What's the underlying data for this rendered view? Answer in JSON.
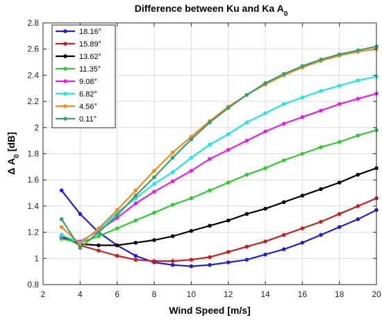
{
  "chart_data": {
    "type": "line",
    "title_main": "Difference between Ku and Ka A",
    "title_sub": "0",
    "xlabel": "Wind Speed [m/s]",
    "ylabel_main": "Δ A",
    "ylabel_sub": "0",
    "ylabel_unit": " [dB]",
    "xlim": [
      2,
      20
    ],
    "ylim": [
      0.8,
      2.8
    ],
    "xticks": [
      "2",
      "4",
      "6",
      "8",
      "10",
      "12",
      "14",
      "16",
      "18",
      "20"
    ],
    "xtick_values": [
      2,
      4,
      6,
      8,
      10,
      12,
      14,
      16,
      18,
      20
    ],
    "yticks": [
      "0.8",
      "1",
      "1.2",
      "1.4",
      "1.6",
      "1.8",
      "2",
      "2.2",
      "2.4",
      "2.6",
      "2.8"
    ],
    "ytick_values": [
      0.8,
      1.0,
      1.2,
      1.4,
      1.6,
      1.8,
      2.0,
      2.2,
      2.4,
      2.6,
      2.8
    ],
    "grid": true,
    "legend_position": "top-left",
    "x": [
      3,
      4,
      5,
      6,
      7,
      8,
      9,
      10,
      11,
      12,
      13,
      14,
      15,
      16,
      17,
      18,
      19,
      20
    ],
    "series": [
      {
        "name": "18.16°",
        "color": "#1f1fd6",
        "values": [
          1.52,
          1.34,
          1.2,
          1.1,
          1.02,
          0.97,
          0.95,
          0.94,
          0.95,
          0.97,
          0.99,
          1.03,
          1.07,
          1.12,
          1.18,
          1.24,
          1.3,
          1.37
        ]
      },
      {
        "name": "15.89°",
        "color": "#c81e1e",
        "values": [
          1.18,
          1.1,
          1.06,
          1.02,
          0.99,
          0.98,
          0.98,
          0.99,
          1.01,
          1.05,
          1.09,
          1.13,
          1.18,
          1.23,
          1.28,
          1.34,
          1.4,
          1.46
        ]
      },
      {
        "name": "13.62°",
        "color": "#000000",
        "values": [
          1.16,
          1.11,
          1.1,
          1.1,
          1.12,
          1.14,
          1.17,
          1.21,
          1.25,
          1.29,
          1.34,
          1.38,
          1.43,
          1.48,
          1.53,
          1.58,
          1.64,
          1.69
        ]
      },
      {
        "name": "11.35°",
        "color": "#2ecc2e",
        "values": [
          1.15,
          1.12,
          1.17,
          1.23,
          1.29,
          1.35,
          1.41,
          1.46,
          1.52,
          1.58,
          1.64,
          1.69,
          1.75,
          1.8,
          1.85,
          1.89,
          1.94,
          1.98
        ]
      },
      {
        "name": "9.08°",
        "color": "#e61ee6",
        "values": [
          1.17,
          1.13,
          1.21,
          1.31,
          1.42,
          1.51,
          1.59,
          1.67,
          1.76,
          1.83,
          1.9,
          1.97,
          2.03,
          2.08,
          2.13,
          2.18,
          2.22,
          2.26
        ]
      },
      {
        "name": "6.82°",
        "color": "#1ee6e6",
        "values": [
          1.18,
          1.12,
          1.22,
          1.35,
          1.46,
          1.57,
          1.66,
          1.77,
          1.87,
          1.95,
          2.04,
          2.11,
          2.18,
          2.23,
          2.28,
          2.32,
          2.36,
          2.39
        ]
      },
      {
        "name": "4.56°",
        "color": "#f28c1e",
        "values": [
          1.24,
          1.11,
          1.23,
          1.37,
          1.52,
          1.67,
          1.81,
          1.93,
          2.05,
          2.16,
          2.25,
          2.33,
          2.4,
          2.46,
          2.51,
          2.55,
          2.58,
          2.6
        ]
      },
      {
        "name": "0.11°",
        "color": "#3a9e6e",
        "values": [
          1.3,
          1.08,
          1.2,
          1.33,
          1.48,
          1.62,
          1.77,
          1.91,
          2.04,
          2.15,
          2.25,
          2.34,
          2.41,
          2.47,
          2.52,
          2.56,
          2.59,
          2.62
        ]
      }
    ]
  }
}
